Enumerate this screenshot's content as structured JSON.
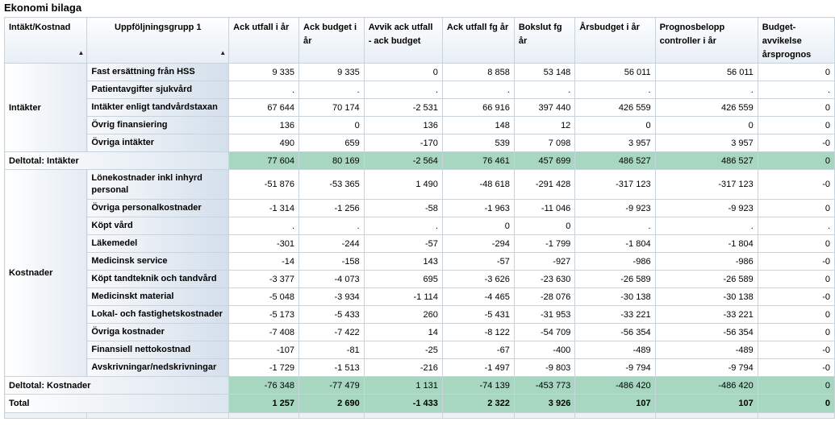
{
  "title": "Ekonomi bilaga",
  "columns": [
    "Intäkt/Kostnad",
    "Uppföljningsgrupp 1",
    "Ack utfall i år",
    "Ack budget i år",
    "Avvik ack utfall - ack budget",
    "Ack utfall fg år",
    "Bokslut fg år",
    "Årsbudget i år",
    "Prognosbelopp controller i år",
    "Budget-avvikelse årsprognos"
  ],
  "groups": [
    {
      "name": "Intäkter",
      "rows": [
        {
          "label": "Fast ersättning från HSS",
          "values": [
            "9 335",
            "9 335",
            "0",
            "8 858",
            "53 148",
            "56 011",
            "56 011",
            "0"
          ]
        },
        {
          "label": "Patientavgifter sjukvård",
          "values": [
            ".",
            ".",
            ".",
            ".",
            ".",
            ".",
            ".",
            "."
          ]
        },
        {
          "label": "Intäkter enligt tandvårdstaxan",
          "values": [
            "67 644",
            "70 174",
            "-2 531",
            "66 916",
            "397 440",
            "426 559",
            "426 559",
            "0"
          ]
        },
        {
          "label": "Övrig finansiering",
          "values": [
            "136",
            "0",
            "136",
            "148",
            "12",
            "0",
            "0",
            "0"
          ]
        },
        {
          "label": "Övriga intäkter",
          "values": [
            "490",
            "659",
            "-170",
            "539",
            "7 098",
            "3 957",
            "3 957",
            "-0"
          ]
        }
      ],
      "subtotal": {
        "label": "Deltotal: Intäkter",
        "values": [
          "77 604",
          "80 169",
          "-2 564",
          "76 461",
          "457 699",
          "486 527",
          "486 527",
          "0"
        ]
      }
    },
    {
      "name": "Kostnader",
      "rows": [
        {
          "label": "Lönekostnader inkl inhyrd personal",
          "values": [
            "-51 876",
            "-53 365",
            "1 490",
            "-48 618",
            "-291 428",
            "-317 123",
            "-317 123",
            "-0"
          ]
        },
        {
          "label": "Övriga personalkostnader",
          "values": [
            "-1 314",
            "-1 256",
            "-58",
            "-1 963",
            "-11 046",
            "-9 923",
            "-9 923",
            "0"
          ]
        },
        {
          "label": "Köpt vård",
          "values": [
            ".",
            ".",
            ".",
            "0",
            "0",
            ".",
            ".",
            "."
          ]
        },
        {
          "label": "Läkemedel",
          "values": [
            "-301",
            "-244",
            "-57",
            "-294",
            "-1 799",
            "-1 804",
            "-1 804",
            "0"
          ]
        },
        {
          "label": "Medicinsk service",
          "values": [
            "-14",
            "-158",
            "143",
            "-57",
            "-927",
            "-986",
            "-986",
            "-0"
          ]
        },
        {
          "label": "Köpt tandteknik och tandvård",
          "values": [
            "-3 377",
            "-4 073",
            "695",
            "-3 626",
            "-23 630",
            "-26 589",
            "-26 589",
            "0"
          ]
        },
        {
          "label": "Medicinskt material",
          "values": [
            "-5 048",
            "-3 934",
            "-1 114",
            "-4 465",
            "-28 076",
            "-30 138",
            "-30 138",
            "-0"
          ]
        },
        {
          "label": "Lokal- och fastighetskostnader",
          "values": [
            "-5 173",
            "-5 433",
            "260",
            "-5 431",
            "-31 953",
            "-33 221",
            "-33 221",
            "0"
          ]
        },
        {
          "label": "Övriga kostnader",
          "values": [
            "-7 408",
            "-7 422",
            "14",
            "-8 122",
            "-54 709",
            "-56 354",
            "-56 354",
            "0"
          ]
        },
        {
          "label": "Finansiell nettokostnad",
          "values": [
            "-107",
            "-81",
            "-25",
            "-67",
            "-400",
            "-489",
            "-489",
            "-0"
          ]
        },
        {
          "label": "Avskrivningar/nedskrivningar",
          "values": [
            "-1 729",
            "-1 513",
            "-216",
            "-1 497",
            "-9 803",
            "-9 794",
            "-9 794",
            "-0"
          ]
        }
      ],
      "subtotal": {
        "label": "Deltotal: Kostnader",
        "values": [
          "-76 348",
          "-77 479",
          "1 131",
          "-74 139",
          "-453 773",
          "-486 420",
          "-486 420",
          "0"
        ]
      }
    }
  ],
  "total": {
    "label": "Total",
    "values": [
      "1 257",
      "2 690",
      "-1 433",
      "2 322",
      "3 926",
      "107",
      "107",
      "0"
    ]
  },
  "colors": {
    "subtotal_bg": "#a7d7c0",
    "header_bg": "#e7eef5",
    "label_bg": "#d3dfeb"
  }
}
